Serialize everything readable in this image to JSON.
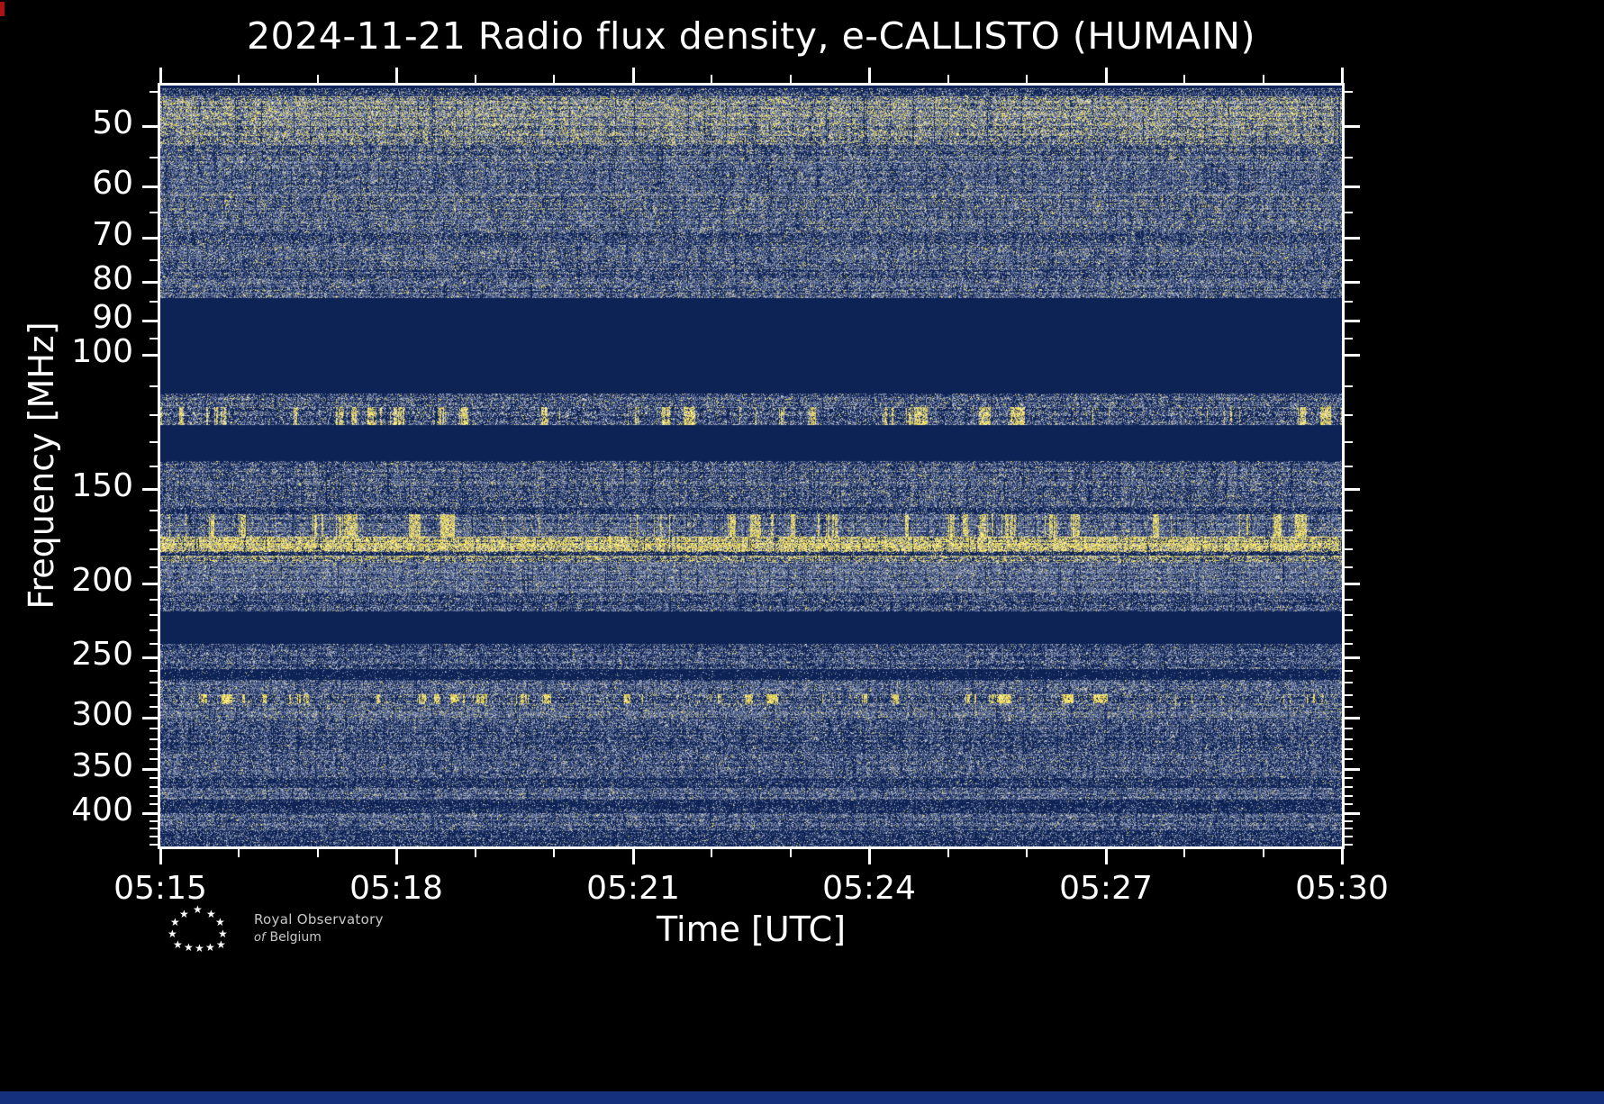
{
  "chart_data": {
    "type": "heatmap",
    "title": "2024-11-21 Radio flux density, e-CALLISTO (HUMAIN)",
    "xlabel": "Time [UTC]",
    "ylabel": "Frequency [MHz]",
    "x_major_ticks": [
      "05:15",
      "05:18",
      "05:21",
      "05:24",
      "05:27",
      "05:30"
    ],
    "x_minor_count": 15,
    "x_range_minutes": 15,
    "y_scale": "log",
    "y_axis_inverted": true,
    "f_min": 44.2,
    "f_max": 443.0,
    "y_ticks": [
      50,
      60,
      70,
      80,
      90,
      100,
      150,
      200,
      250,
      300,
      350,
      400
    ],
    "y_minor_ticks": [
      45,
      55,
      65,
      75,
      85,
      95,
      110,
      120,
      130,
      140,
      160,
      170,
      180,
      190,
      210,
      220,
      230,
      240,
      260,
      270,
      280,
      290,
      310,
      320,
      330,
      340,
      360,
      370,
      380,
      390,
      410,
      420,
      430,
      440
    ],
    "palette": {
      "background": "#0d2255",
      "speckle": [
        "#3b4d7a",
        "#56688f",
        "#7080a2",
        "#8e9ab4",
        "#bcc2d1"
      ],
      "emission": [
        "#b9ac5e",
        "#dcca5c",
        "#f2de52",
        "#ffe95a",
        "#fff3a1"
      ]
    },
    "bands": [
      {
        "f0": 44.6,
        "f1": 45.7,
        "density": 0.45,
        "yellow": 0.08
      },
      {
        "f0": 45.7,
        "f1": 52.8,
        "density": 0.88,
        "yellow": 0.3,
        "bright": 1.15
      },
      {
        "f0": 52.8,
        "f1": 55.7,
        "density": 0.72,
        "yellow": 0.12
      },
      {
        "f0": 55.7,
        "f1": 61.3,
        "density": 0.68,
        "yellow": 0.08
      },
      {
        "f0": 61.3,
        "f1": 64.8,
        "density": 0.76,
        "yellow": 0.14
      },
      {
        "f0": 64.8,
        "f1": 68.5,
        "density": 0.7,
        "yellow": 0.1
      },
      {
        "f0": 68.5,
        "f1": 71.7,
        "density": 0.55,
        "yellow": 0.08
      },
      {
        "f0": 71.7,
        "f1": 76.8,
        "density": 0.7,
        "yellow": 0.09
      },
      {
        "f0": 76.8,
        "f1": 80.4,
        "density": 0.58,
        "yellow": 0.07
      },
      {
        "f0": 80.4,
        "f1": 84.0,
        "density": 0.66,
        "yellow": 0.08
      },
      {
        "f0": 112.3,
        "f1": 117.0,
        "density": 0.62,
        "yellow": 0.1
      },
      {
        "f0": 117.0,
        "f1": 123.4,
        "density": 0.6,
        "yellow": 0.22,
        "burst": true,
        "bright": 1.2
      },
      {
        "f0": 138.0,
        "f1": 158.0,
        "density": 0.66,
        "yellow": 0.09
      },
      {
        "f0": 158.0,
        "f1": 162.0,
        "density": 0.32,
        "yellow": 0.05
      },
      {
        "f0": 162.0,
        "f1": 173.5,
        "density": 0.75,
        "yellow": 0.22,
        "burst": true
      },
      {
        "f0": 173.5,
        "f1": 180.9,
        "density": 0.96,
        "yellow": 0.78,
        "bright": 1.3
      },
      {
        "f0": 180.9,
        "f1": 183.8,
        "density": 0.34,
        "yellow": 0.15
      },
      {
        "f0": 183.8,
        "f1": 187.3,
        "density": 0.85,
        "yellow": 0.45,
        "bright": 1.1
      },
      {
        "f0": 187.3,
        "f1": 204.9,
        "density": 0.84,
        "yellow": 0.06
      },
      {
        "f0": 204.9,
        "f1": 216.5,
        "density": 0.52,
        "yellow": 0.05
      },
      {
        "f0": 239.6,
        "f1": 258.0,
        "density": 0.58,
        "yellow": 0.04
      },
      {
        "f0": 258.0,
        "f1": 267.7,
        "density": 0.1,
        "yellow": 0.02
      },
      {
        "f0": 267.7,
        "f1": 279.7,
        "density": 0.66,
        "yellow": 0.06
      },
      {
        "f0": 279.7,
        "f1": 287.5,
        "density": 0.58,
        "yellow": 0.3,
        "burst": true,
        "bright": 1.1
      },
      {
        "f0": 287.5,
        "f1": 301.7,
        "density": 0.76,
        "yellow": 0.09
      },
      {
        "f0": 301.7,
        "f1": 334.9,
        "density": 0.55,
        "yellow": 0.04
      },
      {
        "f0": 334.9,
        "f1": 358.2,
        "density": 0.66,
        "yellow": 0.05
      },
      {
        "f0": 358.2,
        "f1": 370.8,
        "density": 0.4,
        "yellow": 0.04
      },
      {
        "f0": 370.8,
        "f1": 383.8,
        "density": 0.7,
        "yellow": 0.05
      },
      {
        "f0": 383.8,
        "f1": 400.1,
        "density": 0.28,
        "yellow": 0.03
      },
      {
        "f0": 400.1,
        "f1": 420.9,
        "density": 0.66,
        "yellow": 0.05
      },
      {
        "f0": 420.9,
        "f1": 443.0,
        "density": 0.36,
        "yellow": 0.03
      }
    ]
  },
  "logo": {
    "star": "★",
    "line1": "Royal Observatory",
    "line2_italic": "of",
    "line2": "Belgium"
  },
  "colors": {
    "figure_background": "#000000",
    "axis": "#ffffff",
    "text": "#ffffff",
    "bottom_strip": "#15317d"
  }
}
